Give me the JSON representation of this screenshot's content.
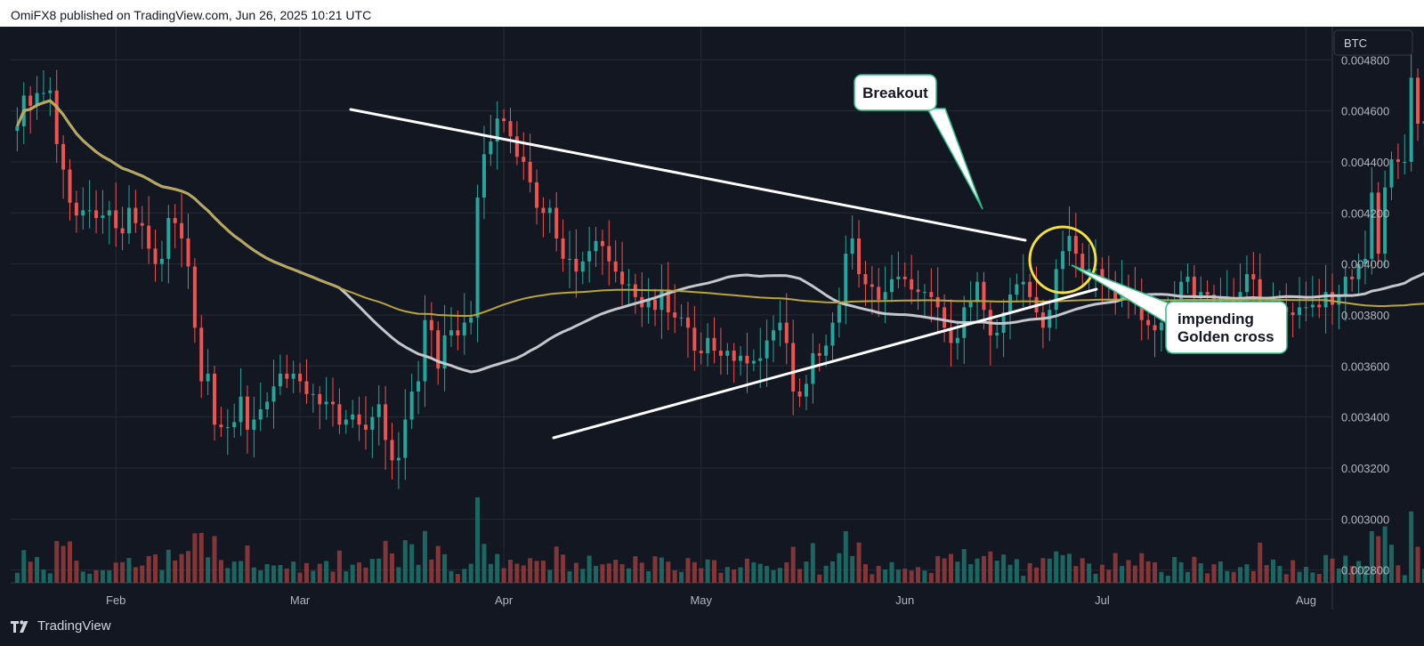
{
  "header": {
    "text": "OmiFX8 published on TradingView.com, Jun 26, 2025 10:21 UTC"
  },
  "footer": {
    "brand": "TradingView"
  },
  "colors": {
    "background": "#131722",
    "grid": "#252a36",
    "up": "#26a69a",
    "down": "#ef5350",
    "ma_slow": "#b8a63a",
    "ma_fast": "#c5c6cc",
    "trendline": "#ffffff",
    "circle": "#f5e042",
    "callout_border": "#2ebd85"
  },
  "chart_data": {
    "type": "candlestick",
    "symbol_label": "BTC",
    "y_ticks": [
      "0.004800",
      "0.004600",
      "0.004400",
      "0.004200",
      "0.004000",
      "0.003800",
      "0.003600",
      "0.003400",
      "0.003200",
      "0.003000",
      "0.002800"
    ],
    "ylim": [
      0.00275,
      0.00493
    ],
    "x_labels": [
      {
        "label": "Feb",
        "date": "2025-02-01"
      },
      {
        "label": "Mar",
        "date": "2025-03-01"
      },
      {
        "label": "Apr",
        "date": "2025-04-01"
      },
      {
        "label": "May",
        "date": "2025-05-01"
      },
      {
        "label": "Jun",
        "date": "2025-06-01"
      },
      {
        "label": "Jul",
        "date": "2025-07-01"
      },
      {
        "label": "Aug",
        "date": "2025-08-01"
      }
    ],
    "xlim": [
      "2025-01-16",
      "2025-08-05"
    ],
    "closes": [
      0.00454,
      0.00466,
      0.00462,
      0.00467,
      0.00467,
      0.00468,
      0.00447,
      0.00437,
      0.00424,
      0.00419,
      0.00421,
      0.00421,
      0.00418,
      0.00419,
      0.00421,
      0.00414,
      0.00412,
      0.00422,
      0.00416,
      0.00415,
      0.00406,
      0.004,
      0.00402,
      0.00418,
      0.00416,
      0.0041,
      0.00399,
      0.00375,
      0.00354,
      0.00357,
      0.00337,
      0.00336,
      0.00336,
      0.00338,
      0.00348,
      0.00335,
      0.00339,
      0.00343,
      0.00346,
      0.00352,
      0.00357,
      0.00355,
      0.00357,
      0.00354,
      0.00349,
      0.00349,
      0.00345,
      0.00346,
      0.00345,
      0.00337,
      0.00339,
      0.00341,
      0.00337,
      0.00335,
      0.0034,
      0.00345,
      0.00331,
      0.00323,
      0.00324,
      0.00339,
      0.0035,
      0.00354,
      0.00378,
      0.00374,
      0.00359,
      0.00372,
      0.00374,
      0.00372,
      0.00377,
      0.00379,
      0.00426,
      0.00443,
      0.00448,
      0.00457,
      0.00456,
      0.0045,
      0.00442,
      0.0044,
      0.00432,
      0.00422,
      0.0042,
      0.00422,
      0.0041,
      0.00402,
      0.00402,
      0.00397,
      0.00401,
      0.00405,
      0.00409,
      0.00407,
      0.00401,
      0.00397,
      0.00392,
      0.00392,
      0.00387,
      0.00383,
      0.00386,
      0.00382,
      0.0039,
      0.00381,
      0.00379,
      0.00379,
      0.00375,
      0.00366,
      0.00365,
      0.00371,
      0.00366,
      0.00364,
      0.00366,
      0.00362,
      0.00364,
      0.00361,
      0.00362,
      0.00363,
      0.0037,
      0.00374,
      0.00377,
      0.00369,
      0.0035,
      0.00348,
      0.00353,
      0.00365,
      0.00364,
      0.00368,
      0.00377,
      0.00384,
      0.00404,
      0.0041,
      0.00396,
      0.00392,
      0.00391,
      0.00386,
      0.00389,
      0.00394,
      0.00395,
      0.00394,
      0.0039,
      0.00389,
      0.00389,
      0.00387,
      0.00383,
      0.00375,
      0.00369,
      0.00371,
      0.00383,
      0.00385,
      0.00393,
      0.00382,
      0.00372,
      0.00373,
      0.00381,
      0.00388,
      0.00392,
      0.00393,
      0.00387,
      0.00381,
      0.00375,
      0.00382,
      0.00398,
      0.00405,
      0.00411,
      0.00404,
      0.00397,
      0.00398,
      0.00398,
      0.00393,
      0.00392,
      0.00386,
      0.0039,
      0.00389,
      0.00385,
      0.00378,
      0.00376,
      0.00374,
      0.00377,
      0.00377,
      0.00386,
      0.00393,
      0.00395,
      0.00387,
      0.00389,
      0.00388,
      0.00383,
      0.00387,
      0.00387,
      0.00385,
      0.00389,
      0.00396,
      0.00394,
      0.00381,
      0.00379,
      0.00383,
      0.00383,
      0.00381,
      0.0038,
      0.00383,
      0.00383,
      0.00384,
      0.00383,
      0.00389,
      0.00384,
      0.00388,
      0.00395,
      0.00394,
      0.004,
      0.00402,
      0.00428,
      0.00404,
      0.0043,
      0.00441,
      0.0044,
      0.0044,
      0.00473,
      0.00455,
      0.00456,
      0.00439,
      0.00439,
      0.00429,
      0.00429,
      0.00451,
      0.0046
    ]
  },
  "annotations": {
    "breakout": "Breakout",
    "golden_line1": "impending",
    "golden_line2": "Golden cross"
  }
}
